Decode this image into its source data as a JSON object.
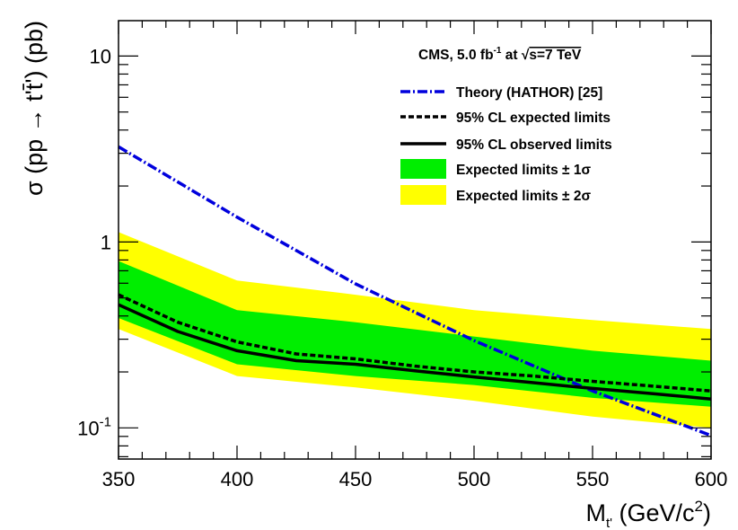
{
  "chart_data": {
    "type": "line",
    "header": "CMS, 5.0 fb⁻¹ at √s=7 TeV",
    "header_parts": {
      "prefix": "CMS, 5.0 fb",
      "sup": "-1",
      "mid": " at ",
      "root": "√",
      "rest": "s=7 TeV"
    },
    "xlabel": "M_t' (GeV/c²)",
    "xlabel_parts": {
      "main": "M",
      "sub": "t'",
      "units": " (GeV/c",
      "sup": "2",
      "close": ")"
    },
    "ylabel": "σ (pp → t't̄') (pb)",
    "ylabel_text": "σ (pp → t't̄') (pb)",
    "xlim": [
      350,
      600
    ],
    "ylim": [
      0.068,
      15.5
    ],
    "yscale": "log",
    "x_ticks": [
      350,
      400,
      450,
      500,
      550,
      600
    ],
    "x_tick_labels": [
      "350",
      "400",
      "450",
      "500",
      "550",
      "600"
    ],
    "y_ticks": [
      0.1,
      1,
      10
    ],
    "y_tick_labels": [
      {
        "base": "10",
        "sup": "-1"
      },
      {
        "base": "1",
        "sup": ""
      },
      {
        "base": "10",
        "sup": ""
      }
    ],
    "x": [
      350,
      400,
      450,
      500,
      550,
      600
    ],
    "series": [
      {
        "name": "Expected limits ± 2σ",
        "kind": "band",
        "color": "#ffff00",
        "low": [
          0.34,
          0.19,
          0.165,
          0.14,
          0.115,
          0.1
        ],
        "high": [
          1.13,
          0.62,
          0.52,
          0.43,
          0.38,
          0.34
        ]
      },
      {
        "name": "Expected limits ± 1σ",
        "kind": "band",
        "color": "#00ee00",
        "low": [
          0.39,
          0.22,
          0.19,
          0.17,
          0.145,
          0.13
        ],
        "high": [
          0.79,
          0.43,
          0.37,
          0.31,
          0.26,
          0.23
        ]
      },
      {
        "name": "Theory (HATHOR) [25]",
        "kind": "line",
        "style": "dashdot",
        "color": "#0000dd",
        "x": [
          350,
          400,
          450,
          500,
          550,
          600
        ],
        "values": [
          3.25,
          1.36,
          0.595,
          0.295,
          0.158,
          0.091
        ]
      },
      {
        "name": "95% CL expected limits",
        "kind": "line",
        "style": "dotted",
        "color": "#000000",
        "x": [
          350,
          375,
          400,
          425,
          450,
          475,
          500,
          525,
          550,
          575,
          600
        ],
        "values": [
          0.52,
          0.37,
          0.29,
          0.25,
          0.235,
          0.215,
          0.2,
          0.19,
          0.178,
          0.168,
          0.158
        ]
      },
      {
        "name": "95% CL observed limits",
        "kind": "line",
        "style": "solid",
        "color": "#000000",
        "x": [
          350,
          375,
          400,
          425,
          450,
          475,
          500,
          525,
          550,
          575,
          600
        ],
        "values": [
          0.46,
          0.33,
          0.26,
          0.23,
          0.22,
          0.203,
          0.188,
          0.175,
          0.163,
          0.153,
          0.143
        ]
      }
    ],
    "legend": [
      {
        "label": "Theory (HATHOR) [25]",
        "symbol": "dashdot",
        "color": "#0000dd"
      },
      {
        "label": "95% CL expected limits",
        "symbol": "dotted",
        "color": "#000000"
      },
      {
        "label": "95% CL observed limits",
        "symbol": "solid",
        "color": "#000000"
      },
      {
        "label": "Expected limits ± 1σ",
        "symbol": "box",
        "color": "#00ee00"
      },
      {
        "label": "Expected limits ± 2σ",
        "symbol": "box",
        "color": "#ffff00"
      }
    ],
    "legend_position": "top-right",
    "grid": false
  }
}
